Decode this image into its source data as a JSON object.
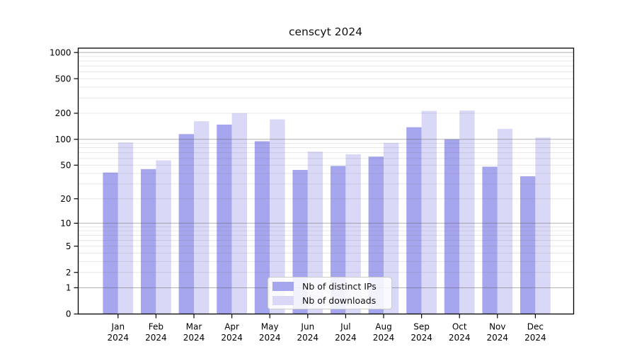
{
  "chart_data": {
    "type": "bar",
    "title": "censcyt 2024",
    "categories": [
      "Jan 2024",
      "Feb 2024",
      "Mar 2024",
      "Apr 2024",
      "May 2024",
      "Jun 2024",
      "Jul 2024",
      "Aug 2024",
      "Sep 2024",
      "Oct 2024",
      "Nov 2024",
      "Dec 2024"
    ],
    "series": [
      {
        "name": "Nb of distinct IPs",
        "color": "#a6a6ee",
        "values": [
          41,
          45,
          115,
          148,
          95,
          44,
          49,
          63,
          138,
          100,
          48,
          37
        ]
      },
      {
        "name": "Nb of downloads",
        "color": "#d9d9f7",
        "values": [
          92,
          57,
          162,
          200,
          170,
          72,
          67,
          91,
          213,
          215,
          132,
          105
        ]
      }
    ],
    "xlabel": "",
    "ylabel": "",
    "yscale": "log1p",
    "yticks": [
      0,
      1,
      2,
      5,
      10,
      20,
      50,
      100,
      200,
      500,
      1000
    ],
    "ylim": [
      0,
      1120
    ],
    "grid": "horizontal; dark lines at 1,10,100,1000; faint minor lines at 2-9 of each decade",
    "legend_position": "lower center inside plot"
  }
}
